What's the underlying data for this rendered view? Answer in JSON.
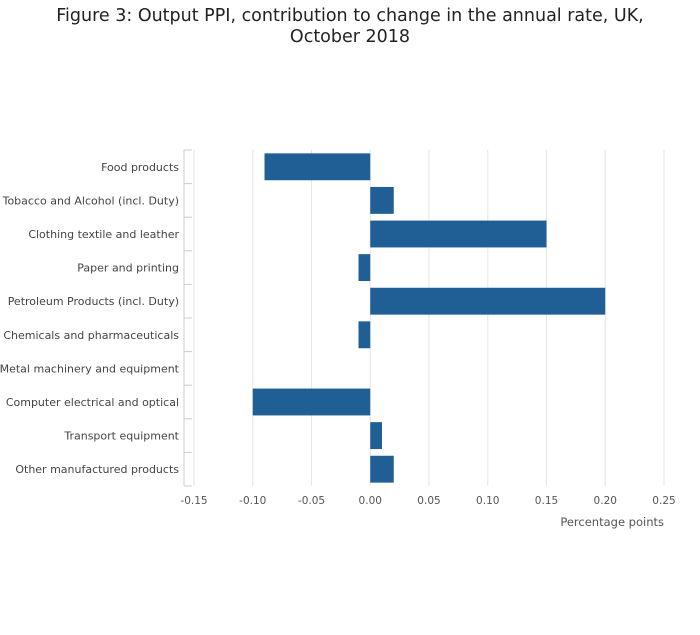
{
  "chart_data": {
    "type": "bar",
    "orientation": "horizontal",
    "title": "Figure 3: Output PPI, contribution to change in the annual rate, UK, October 2018",
    "xlabel": "Percentage points",
    "ylabel": "",
    "xlim": [
      -0.15,
      0.25
    ],
    "x_ticks": [
      "-0.15",
      "-0.10",
      "-0.05",
      "0.00",
      "0.05",
      "0.10",
      "0.15",
      "0.20",
      "0.25"
    ],
    "grid": true,
    "legend": "none",
    "categories": [
      "Food products",
      "Tobacco and Alcohol (incl. Duty)",
      "Clothing textile and leather",
      "Paper and printing",
      "Petroleum Products (incl. Duty)",
      "Chemicals and pharmaceuticals",
      "Metal machinery and equipment",
      "Computer electrical and optical",
      "Transport equipment",
      "Other manufactured products"
    ],
    "values": [
      -0.09,
      0.02,
      0.15,
      -0.01,
      0.2,
      -0.01,
      0.0,
      -0.1,
      0.01,
      0.02
    ],
    "bar_color": "#205f96"
  }
}
